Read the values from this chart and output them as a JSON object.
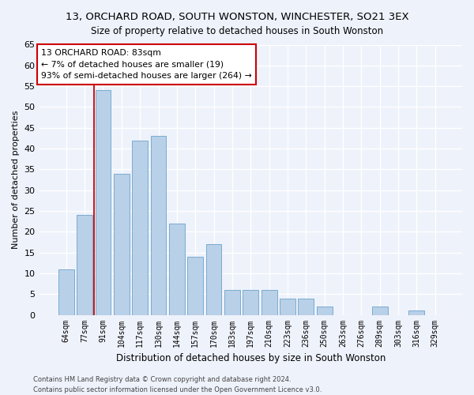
{
  "title": "13, ORCHARD ROAD, SOUTH WONSTON, WINCHESTER, SO21 3EX",
  "subtitle": "Size of property relative to detached houses in South Wonston",
  "xlabel": "Distribution of detached houses by size in South Wonston",
  "ylabel": "Number of detached properties",
  "categories": [
    "64sqm",
    "77sqm",
    "91sqm",
    "104sqm",
    "117sqm",
    "130sqm",
    "144sqm",
    "157sqm",
    "170sqm",
    "183sqm",
    "197sqm",
    "210sqm",
    "223sqm",
    "236sqm",
    "250sqm",
    "263sqm",
    "276sqm",
    "289sqm",
    "303sqm",
    "316sqm",
    "329sqm"
  ],
  "values": [
    11,
    24,
    54,
    34,
    42,
    43,
    22,
    14,
    17,
    6,
    6,
    6,
    4,
    4,
    2,
    0,
    0,
    2,
    0,
    1,
    0
  ],
  "bar_color": "#b8d0e8",
  "bar_edge_color": "#7aabcf",
  "vline_color": "#cc0000",
  "vline_x": 1.5,
  "annotation_box_color": "#ffffff",
  "annotation_box_edge_color": "#cc0000",
  "property_label": "13 ORCHARD ROAD: 83sqm",
  "annotation_line1": "← 7% of detached houses are smaller (19)",
  "annotation_line2": "93% of semi-detached houses are larger (264) →",
  "ylim": [
    0,
    65
  ],
  "yticks": [
    0,
    5,
    10,
    15,
    20,
    25,
    30,
    35,
    40,
    45,
    50,
    55,
    60,
    65
  ],
  "footer_line1": "Contains HM Land Registry data © Crown copyright and database right 2024.",
  "footer_line2": "Contains public sector information licensed under the Open Government Licence v3.0.",
  "bg_color": "#eef2fb",
  "grid_color": "#ffffff"
}
